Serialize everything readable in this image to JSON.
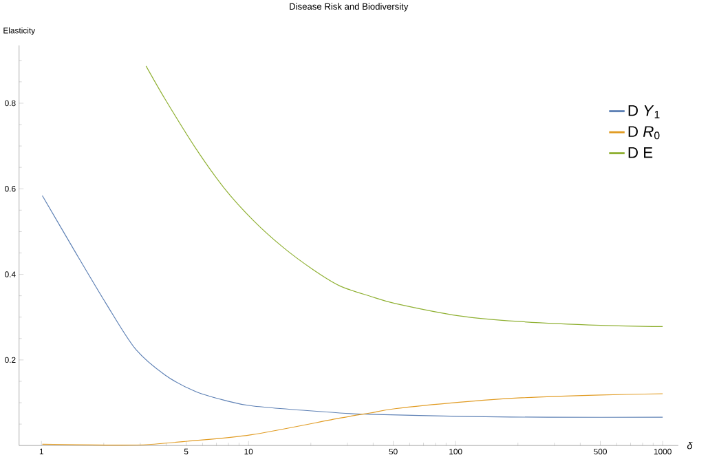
{
  "chart_data": {
    "type": "line",
    "title": "Disease Risk and Biodiversity",
    "ylabel": "Elasticity",
    "xlabel": "δ",
    "log": "x",
    "xlim": [
      0.78,
      1190
    ],
    "ylim": [
      0,
      0.935
    ],
    "xticks": [
      1,
      {
        "value": 2,
        "label": null
      },
      {
        "value": 3,
        "label": null
      },
      {
        "value": 4,
        "label": null
      },
      5,
      {
        "value": 6,
        "label": null
      },
      {
        "value": 7,
        "label": null
      },
      {
        "value": 8,
        "label": null
      },
      {
        "value": 9,
        "label": null
      },
      10,
      {
        "value": 20,
        "label": null
      },
      {
        "value": 30,
        "label": null
      },
      {
        "value": 40,
        "label": null
      },
      50,
      {
        "value": 60,
        "label": null
      },
      {
        "value": 70,
        "label": null
      },
      {
        "value": 80,
        "label": null
      },
      {
        "value": 90,
        "label": null
      },
      100,
      {
        "value": 200,
        "label": null
      },
      {
        "value": 300,
        "label": null
      },
      {
        "value": 400,
        "label": null
      },
      500,
      {
        "value": 600,
        "label": null
      },
      {
        "value": 700,
        "label": null
      },
      {
        "value": 800,
        "label": null
      },
      {
        "value": 900,
        "label": null
      },
      1000
    ],
    "yticks": [
      {
        "value": 0.05,
        "label": null
      },
      {
        "value": 0.1,
        "label": null
      },
      {
        "value": 0.15,
        "label": null
      },
      0.2,
      {
        "value": 0.25,
        "label": null
      },
      {
        "value": 0.3,
        "label": null
      },
      {
        "value": 0.35,
        "label": null
      },
      0.4,
      {
        "value": 0.45,
        "label": null
      },
      {
        "value": 0.5,
        "label": null
      },
      {
        "value": 0.55,
        "label": null
      },
      0.6,
      {
        "value": 0.65,
        "label": null
      },
      {
        "value": 0.7,
        "label": null
      },
      {
        "value": 0.75,
        "label": null
      },
      0.8,
      {
        "value": 0.85,
        "label": null
      },
      {
        "value": 0.9,
        "label": null
      }
    ],
    "grid": false,
    "legend": "top right",
    "marker": "none",
    "line_style": "solid",
    "series": [
      {
        "name": "D *Y*$_{1}$",
        "color": "#5e81b5",
        "x": [
          1.01,
          1.47,
          2.05,
          2.83,
          3.95,
          5.5,
          7.62,
          10.6,
          27.6,
          38.6,
          104,
          279,
          1000
        ],
        "values": [
          0.584,
          0.449,
          0.332,
          0.227,
          0.165,
          0.127,
          0.106,
          0.092,
          0.076,
          0.073,
          0.068,
          0.066,
          0.066
        ]
      },
      {
        "name": "D *R*$_{0}$",
        "color": "#e19c24",
        "x": [
          1.01,
          2.05,
          3.2,
          5.07,
          10.3,
          27.6,
          38.6,
          51,
          104,
          200,
          500,
          1000
        ],
        "values": [
          0.003,
          0.001,
          0.002,
          0.01,
          0.025,
          0.064,
          0.076,
          0.086,
          0.101,
          0.111,
          0.118,
          0.121
        ]
      },
      {
        "name": "D E",
        "color": "#8fb032",
        "x": [
          3.2,
          3.95,
          5.5,
          7.62,
          10.6,
          14.7,
          20.5,
          27.6,
          38.6,
          51,
          104,
          200,
          500,
          1000
        ],
        "values": [
          0.887,
          0.81,
          0.698,
          0.602,
          0.525,
          0.463,
          0.411,
          0.373,
          0.349,
          0.332,
          0.303,
          0.29,
          0.281,
          0.278
        ]
      }
    ]
  }
}
